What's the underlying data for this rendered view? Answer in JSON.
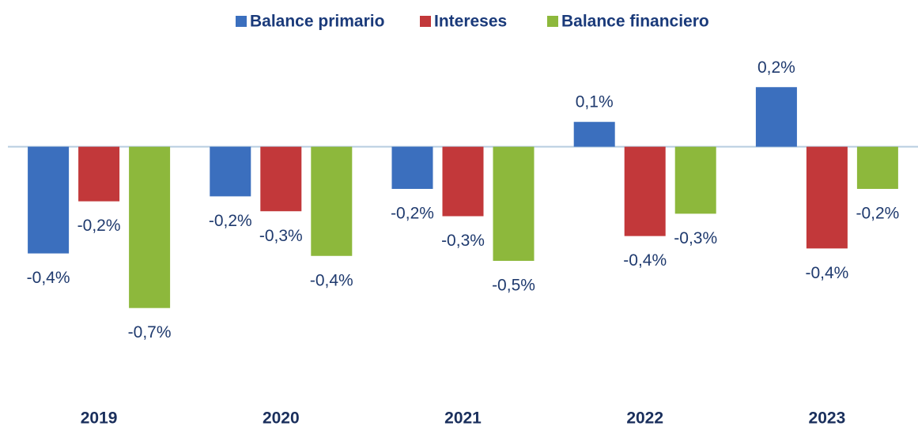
{
  "chart_data": {
    "type": "bar",
    "categories": [
      "2019",
      "2020",
      "2021",
      "2022",
      "2023"
    ],
    "series": [
      {
        "name": "Balance primario",
        "color": "#3b6fbe",
        "values": [
          -0.43,
          -0.2,
          -0.17,
          0.1,
          0.24
        ],
        "value_labels": [
          "-0,4%",
          "-0,2%",
          "-0,2%",
          "0,1%",
          "0,2%"
        ]
      },
      {
        "name": "Intereses",
        "color": "#c2383a",
        "values": [
          -0.22,
          -0.26,
          -0.28,
          -0.36,
          -0.41
        ],
        "value_labels": [
          "-0,2%",
          "-0,3%",
          "-0,3%",
          "-0,4%",
          "-0,4%"
        ]
      },
      {
        "name": "Balance financiero",
        "color": "#8db83c",
        "values": [
          -0.65,
          -0.44,
          -0.46,
          -0.27,
          -0.17
        ],
        "value_labels": [
          "-0,7%",
          "-0,4%",
          "-0,5%",
          "-0,3%",
          "-0,2%"
        ]
      }
    ],
    "ylim": [
      -1.1,
      0.4
    ]
  }
}
